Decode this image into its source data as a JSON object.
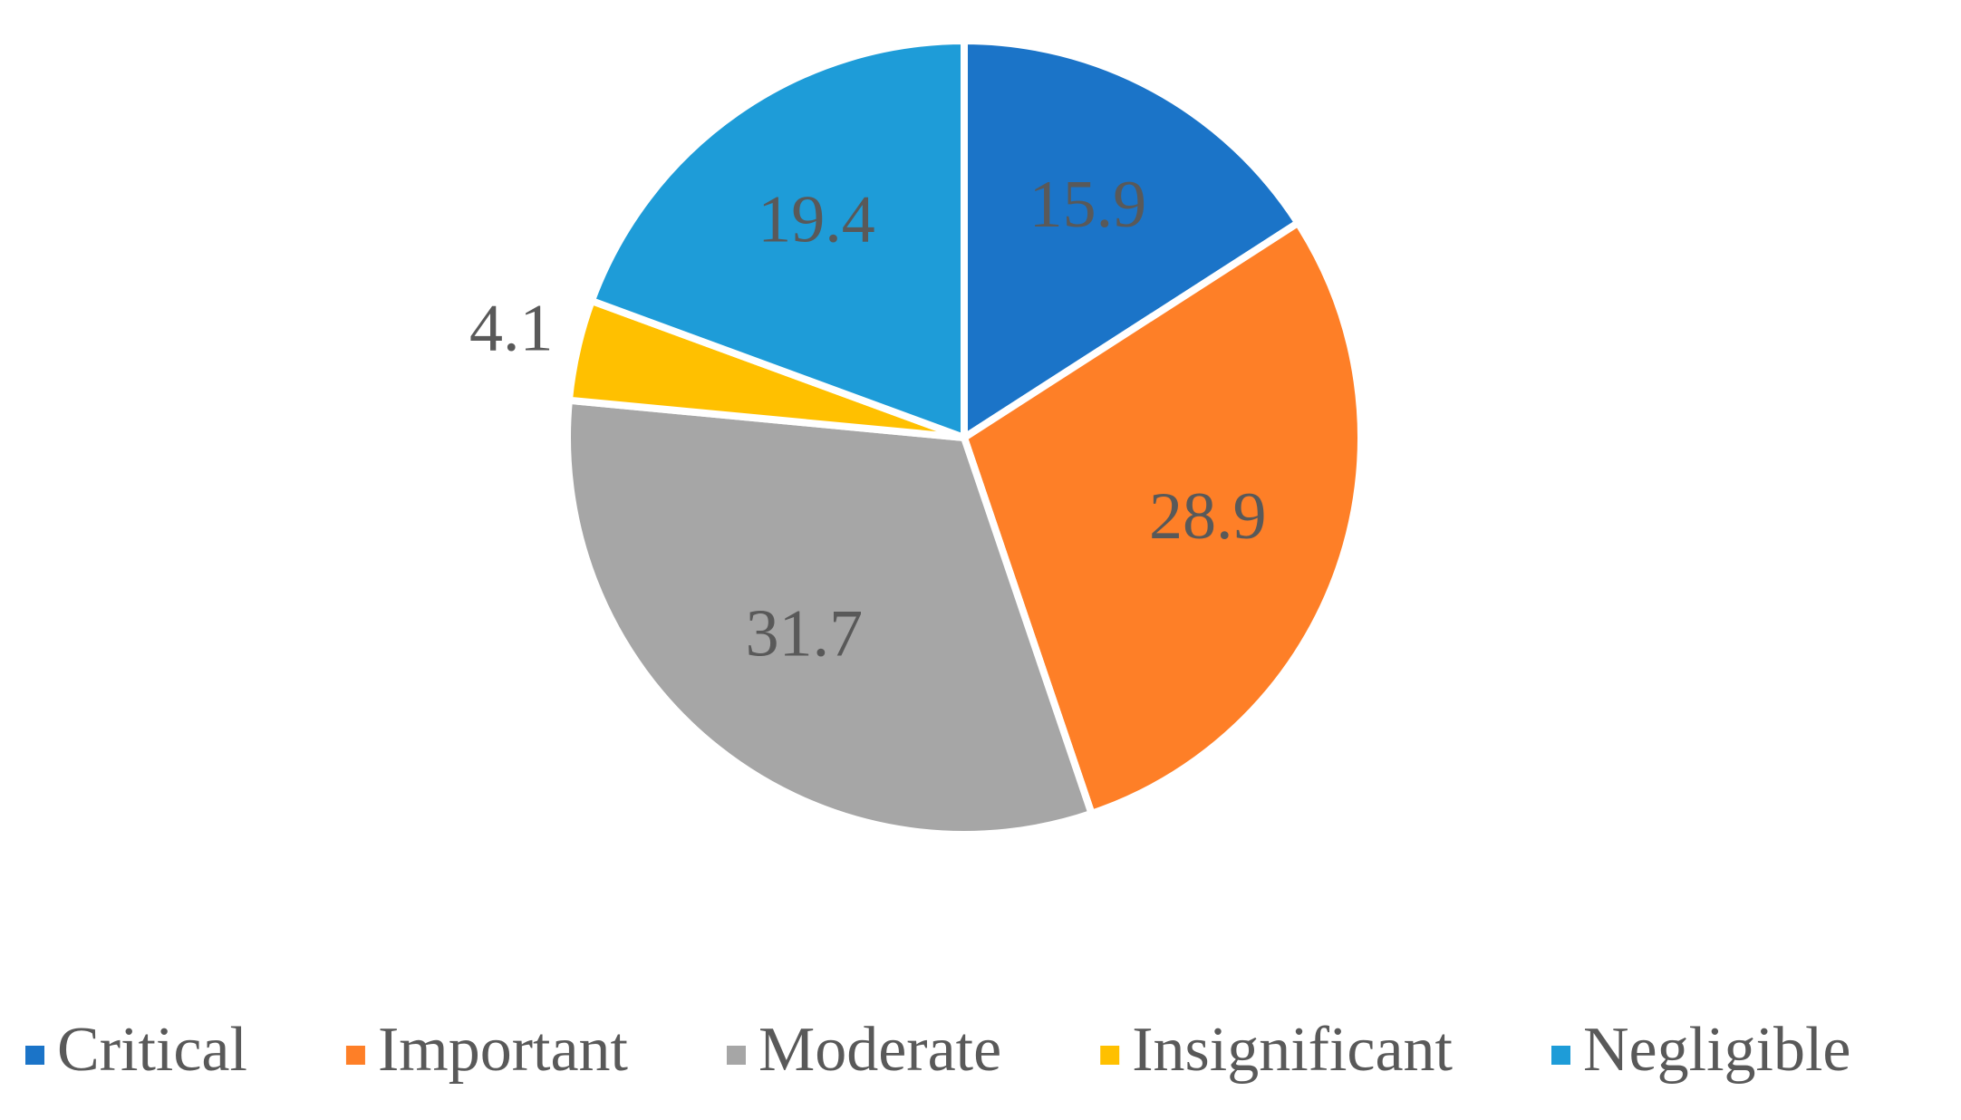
{
  "chart_data": {
    "type": "pie",
    "categories": [
      "Critical",
      "Important",
      "Moderate",
      "Insignificant",
      "Negligible"
    ],
    "values": [
      15.9,
      28.9,
      31.7,
      4.1,
      19.4
    ],
    "colors": [
      "#1b74c8",
      "#fe7f27",
      "#a6a6a6",
      "#ffc000",
      "#1e9cd8"
    ],
    "legend": "bottom"
  }
}
